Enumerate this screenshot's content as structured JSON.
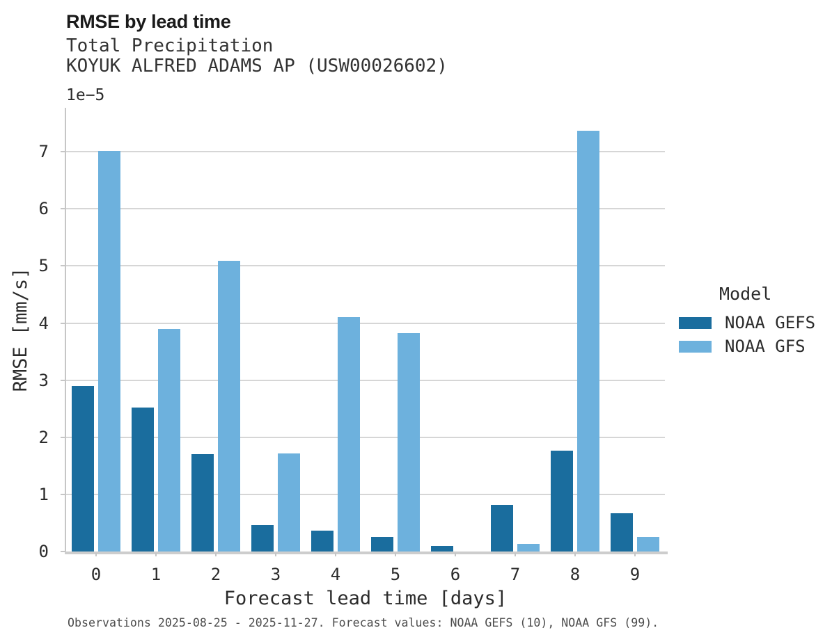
{
  "chart_data": {
    "type": "bar",
    "title": "RMSE by lead time",
    "subtitle": "Total Precipitation",
    "station_label": "KOYUK ALFRED ADAMS AP (USW00026602)",
    "xlabel": "Forecast lead time [days]",
    "ylabel": "RMSE [mm/s]",
    "y_offset_label": "1e−5",
    "units_note": "y values are ×1e-5 mm/s",
    "categories": [
      "0",
      "1",
      "2",
      "3",
      "4",
      "5",
      "6",
      "7",
      "8",
      "9"
    ],
    "series": [
      {
        "name": "NOAA GEFS",
        "color": "#1a6d9e",
        "values": [
          2.9,
          2.52,
          1.71,
          0.46,
          0.37,
          0.25,
          0.1,
          0.81,
          1.76,
          0.67
        ]
      },
      {
        "name": "NOAA GFS",
        "color": "#6db1dd",
        "values": [
          7.02,
          3.9,
          5.09,
          1.72,
          4.1,
          3.82,
          0.0,
          0.13,
          7.37,
          0.26
        ]
      }
    ],
    "ylim": [
      0,
      7.77
    ],
    "yticks": [
      0,
      1,
      2,
      3,
      4,
      5,
      6,
      7
    ],
    "grid": true,
    "legend": {
      "title": "Model",
      "position": "right"
    },
    "caption": "Observations 2025-08-25 - 2025-11-27. Forecast values: NOAA GEFS (10), NOAA GFS (99)."
  },
  "colors": {
    "gridline": "#d6d6d6",
    "axis": "#c6c6c6",
    "title_text": "#1a1a1a",
    "body_text": "#2b2b2b",
    "caption_text": "#4d4d4d",
    "background": "#ffffff"
  }
}
